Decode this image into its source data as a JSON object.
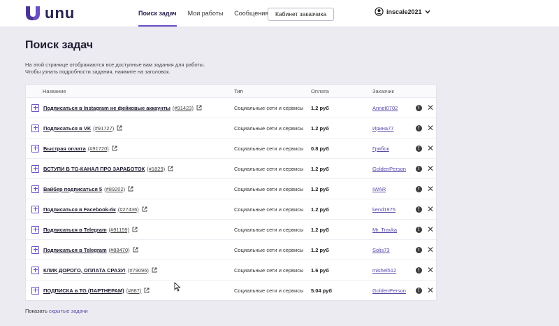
{
  "app": {
    "logo_text": "unu",
    "brand_color": "#6a4fc4"
  },
  "nav": {
    "items": [
      {
        "label": "Поиск задач",
        "active": true
      },
      {
        "label": "Мои работы",
        "active": false
      },
      {
        "label": "Сообщения",
        "active": false
      }
    ],
    "cabinet_button": "Кабинет заказчика",
    "user": {
      "name": "inscale2021",
      "icon": "user-circle-icon"
    }
  },
  "page": {
    "title": "Поиск задач",
    "description_line1": "На этой странице отображаются все доступные вам задания для работы.",
    "description_line2": "Чтобы узнать подробности задания, нажмите на заголовок."
  },
  "table": {
    "headers": {
      "name": "Название",
      "type": "Тип",
      "pay": "Оплата",
      "customer": "Заказчик"
    },
    "rows": [
      {
        "title": "Подписаться в Instagram не фейковые аккаунты",
        "num": "(#91423)",
        "type": "Социальные сети и сервисы",
        "pay": "1.2 руб",
        "customer": "Annet0702"
      },
      {
        "title": "Подписаться в VK",
        "num": "(#91727)",
        "type": "Социальные сети и сервисы",
        "pay": "1.2 руб",
        "customer": "Ирина77"
      },
      {
        "title": "Быстрая оплата",
        "num": "(#91720)",
        "type": "Социальные сети и сервисы",
        "pay": "0.8 руб",
        "customer": "Грибок"
      },
      {
        "title": "ВСТУПИ В TG-КАНАЛ ПРО ЗАРАБОТОК",
        "num": "(#1829)",
        "type": "Социальные сети и сервисы",
        "pay": "1.2 руб",
        "customer": "GoldenPerson"
      },
      {
        "title": "Вайбер подписаться 5",
        "num": "(#89202)",
        "type": "Социальные сети и сервисы",
        "pay": "1.2 руб",
        "customer": "IWAR"
      },
      {
        "title": "Подписаться в Facebook-бк",
        "num": "(#27436)",
        "type": "Социальные сети и сервисы",
        "pay": "1.2 руб",
        "customer": "kend1975"
      },
      {
        "title": "Подписаться в Telegram",
        "num": "(#91159)",
        "type": "Социальные сети и сервисы",
        "pay": "1.2 руб",
        "customer": "Mr. Travka"
      },
      {
        "title": "Подписаться в Telegram",
        "num": "(#88470)",
        "type": "Социальные сети и сервисы",
        "pay": "1.2 руб",
        "customer": "Solis73"
      },
      {
        "title": "КЛИК ДОРОГО, ОПЛАТА СРАЗУ!",
        "num": "(#79096)",
        "type": "Социальные сети и сервисы",
        "pay": "1.6 руб",
        "customer": "mishel512"
      },
      {
        "title": "ПОДПИСКА в TG (ПАРТНЕРАМ)",
        "num": "(#887)",
        "type": "Социальные сети и сервисы",
        "pay": "5.04 руб",
        "customer": "GoldenPerson"
      }
    ]
  },
  "footer": {
    "prefix": "Показать",
    "link": "скрытые задачи"
  }
}
